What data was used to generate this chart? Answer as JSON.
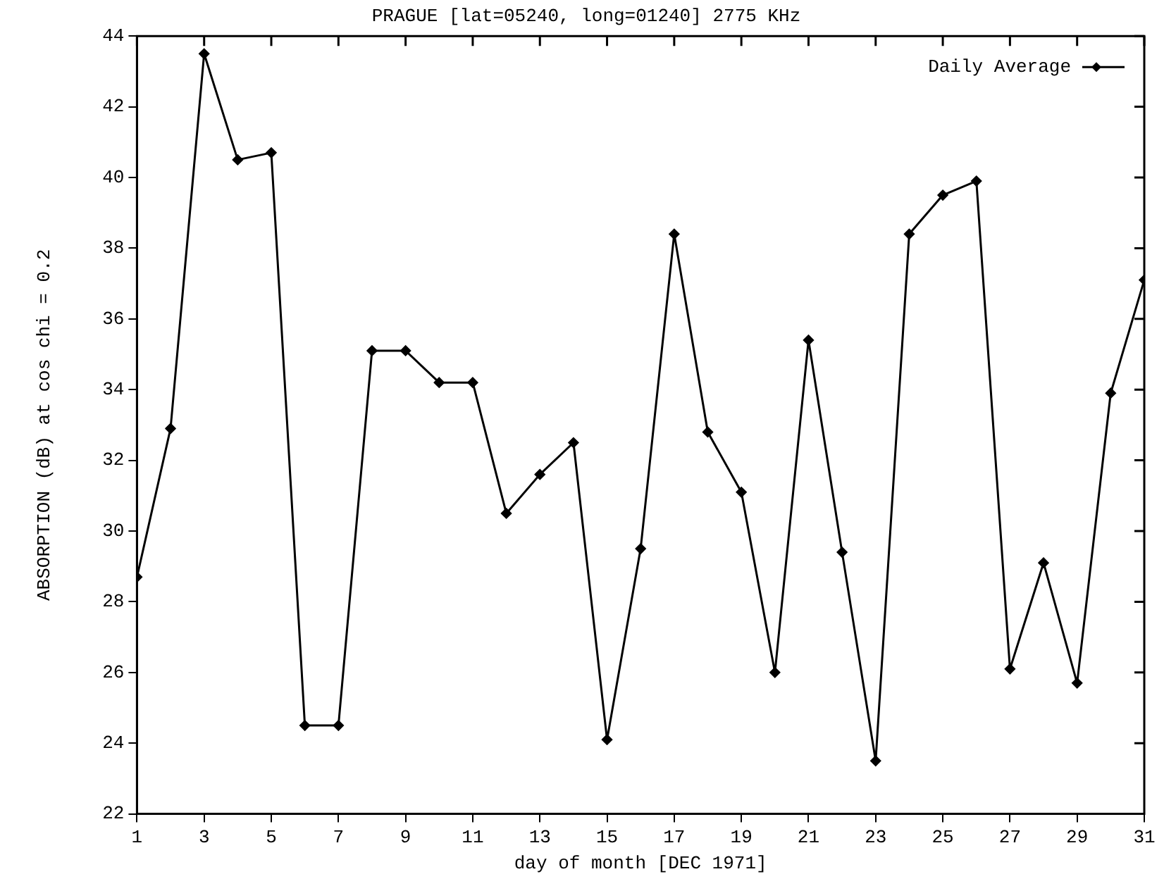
{
  "chart_data": {
    "type": "line",
    "title": "PRAGUE [lat=05240, long=01240] 2775 KHz",
    "xlabel": "day of month [DEC 1971]",
    "ylabel": "ABSORPTION (dB) at cos chi = 0.2",
    "x": [
      1,
      2,
      3,
      4,
      5,
      6,
      7,
      8,
      9,
      10,
      11,
      12,
      13,
      14,
      15,
      16,
      17,
      18,
      19,
      20,
      21,
      22,
      23,
      24,
      25,
      26,
      27,
      28,
      29,
      30,
      31
    ],
    "series": [
      {
        "name": "Daily Average",
        "color": "#000000",
        "values": [
          28.7,
          32.9,
          43.5,
          40.5,
          40.7,
          24.5,
          24.5,
          35.1,
          35.1,
          34.2,
          34.2,
          30.5,
          31.6,
          32.5,
          24.1,
          29.5,
          38.4,
          32.8,
          31.1,
          26.0,
          35.4,
          29.4,
          23.5,
          38.4,
          39.5,
          39.9,
          26.1,
          29.1,
          25.7,
          33.9,
          37.1
        ]
      }
    ],
    "xlim": [
      1,
      31
    ],
    "xticks": [
      1,
      3,
      5,
      7,
      9,
      11,
      13,
      15,
      17,
      19,
      21,
      23,
      25,
      27,
      29,
      31
    ],
    "ylim": [
      22,
      44
    ],
    "yticks": [
      22,
      24,
      26,
      28,
      30,
      32,
      34,
      36,
      38,
      40,
      42,
      44
    ],
    "grid": false,
    "legend": "top right",
    "marker": "diamond",
    "line_style": "solid"
  }
}
